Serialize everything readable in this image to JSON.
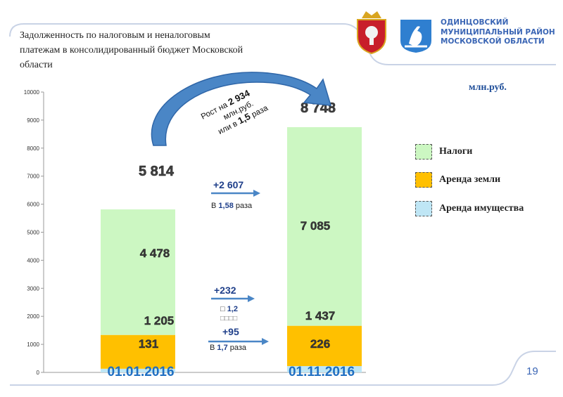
{
  "header": {
    "title": "Задолженность по налоговым и неналоговым платежам в консолидированный бюджет Московской области",
    "org_name": "ОДИНЦОВСКИЙ МУНИЦИПАЛЬНЫЙ РАЙОН МОСКОВСКОЙ ОБЛАСТИ",
    "unit": "млн.руб.",
    "page_number": "19"
  },
  "logos": {
    "coat_of_arms": "moscow-oblast-coat-of-arms",
    "district_emblem": "odintsovo-district-emblem"
  },
  "colors": {
    "taxes": "#ccf7c2",
    "land": "#ffc000",
    "property": "#bfe6f5",
    "accent_blue": "#3b66b5",
    "arrow_blue": "#4a86c6",
    "date_blue": "#1f6fc2"
  },
  "chart_data": {
    "type": "bar",
    "stacked": true,
    "categories": [
      "01.01.2016",
      "01.11.2016"
    ],
    "series": [
      {
        "name": "Аренда имущества",
        "values": [
          131,
          226
        ],
        "labels": [
          "131",
          "226"
        ]
      },
      {
        "name": "Аренда земли",
        "values": [
          1205,
          1437
        ],
        "labels": [
          "1 205",
          "1 437"
        ]
      },
      {
        "name": "Налоги",
        "values": [
          4478,
          7085
        ],
        "labels": [
          "4 478",
          "7 085"
        ]
      }
    ],
    "totals": [
      5814,
      8748
    ],
    "total_labels": [
      "5 814",
      "8 748"
    ],
    "ylim": [
      0,
      10000
    ],
    "yticks": [
      0,
      1000,
      2000,
      3000,
      4000,
      5000,
      6000,
      7000,
      8000,
      9000,
      10000
    ],
    "legend": [
      "Налоги",
      "Аренда земли",
      "Аренда имущества"
    ],
    "legend_position": "right"
  },
  "annotations": {
    "growth_total": {
      "line1_prefix": "Рост на ",
      "line1_value": "2 934",
      "line2": "млн.руб.",
      "line3_prefix": "или в ",
      "line3_value": "1,5",
      "line3_suffix": " раза"
    },
    "taxes_change": {
      "delta": "+2 607",
      "ratio_prefix": "В ",
      "ratio_value": "1,58",
      "ratio_suffix": " раза"
    },
    "land_change": {
      "delta": "+232",
      "ratio_prefix": "□ ",
      "ratio_value": "1,2",
      "ratio_suffix": "□□□□"
    },
    "property_change": {
      "delta": "+95",
      "ratio_prefix": "В ",
      "ratio_value": "1,7",
      "ratio_suffix": " раза"
    }
  }
}
